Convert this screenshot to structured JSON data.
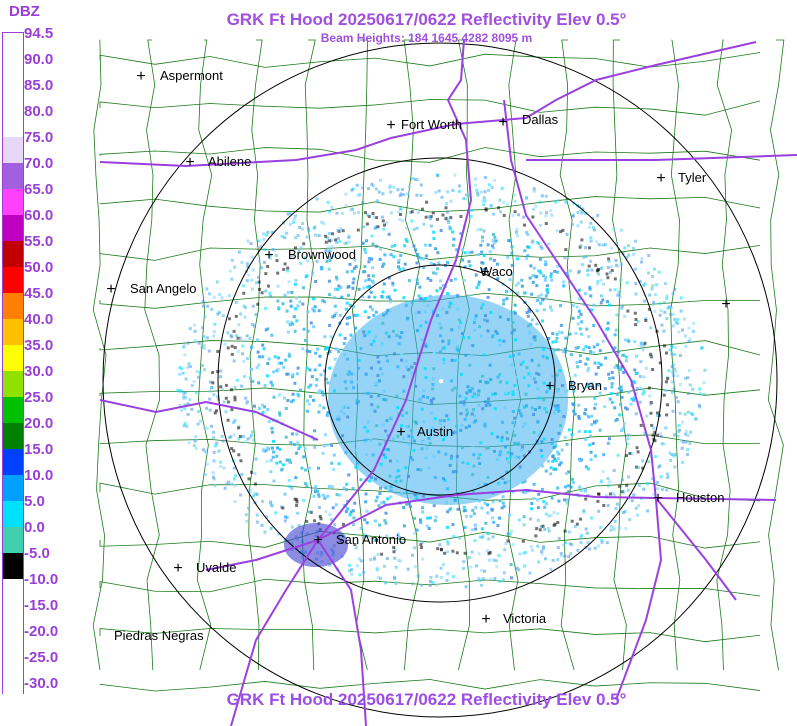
{
  "title": "GRK Ft Hood 20250617/0622 Reflectivity Elev 0.5°",
  "subtitle": "Beam Heights: 184 1645 4282 8095 m",
  "legend": {
    "unit": "DBZ",
    "labels": [
      "94.5",
      "90.0",
      "85.0",
      "80.0",
      "75.0",
      "70.0",
      "65.0",
      "60.0",
      "55.0",
      "50.0",
      "45.0",
      "40.0",
      "35.0",
      "30.0",
      "25.0",
      "20.0",
      "15.0",
      "10.0",
      "5.0",
      "0.0",
      "-5.0",
      "-10.0",
      "-15.0",
      "-20.0",
      "-25.0",
      "-30.0"
    ],
    "colors": [
      "#ffffff",
      "#ffffff",
      "#ffffff",
      "#ffffff",
      "#e8d8f8",
      "#a060e0",
      "#ff40ff",
      "#c000c0",
      "#c00000",
      "#ff0000",
      "#ff8000",
      "#ffc000",
      "#ffff00",
      "#90e000",
      "#00c000",
      "#008000",
      "#0040ff",
      "#00a0ff",
      "#00e0ff",
      "#40d0b0",
      "#000000",
      "#ffffff",
      "#ffffff",
      "#ffffff",
      "#ffffff",
      "#ffffff"
    ]
  },
  "cities": [
    {
      "name": "Aspermont"
    },
    {
      "name": "Fort Worth"
    },
    {
      "name": "Dallas"
    },
    {
      "name": "Abilene"
    },
    {
      "name": "Tyler"
    },
    {
      "name": "Brownwood"
    },
    {
      "name": "Waco"
    },
    {
      "name": "San Angelo"
    },
    {
      "name": "Bryan"
    },
    {
      "name": "Austin"
    },
    {
      "name": "Houston"
    },
    {
      "name": "San Antonio"
    },
    {
      "name": "Uvalde"
    },
    {
      "name": "Victoria"
    },
    {
      "name": "Piedras Negras"
    }
  ],
  "colors": {
    "title": "#a050e0",
    "highways": "#9b40e0",
    "counties": "#1a7a1a",
    "rings": "#000000"
  }
}
